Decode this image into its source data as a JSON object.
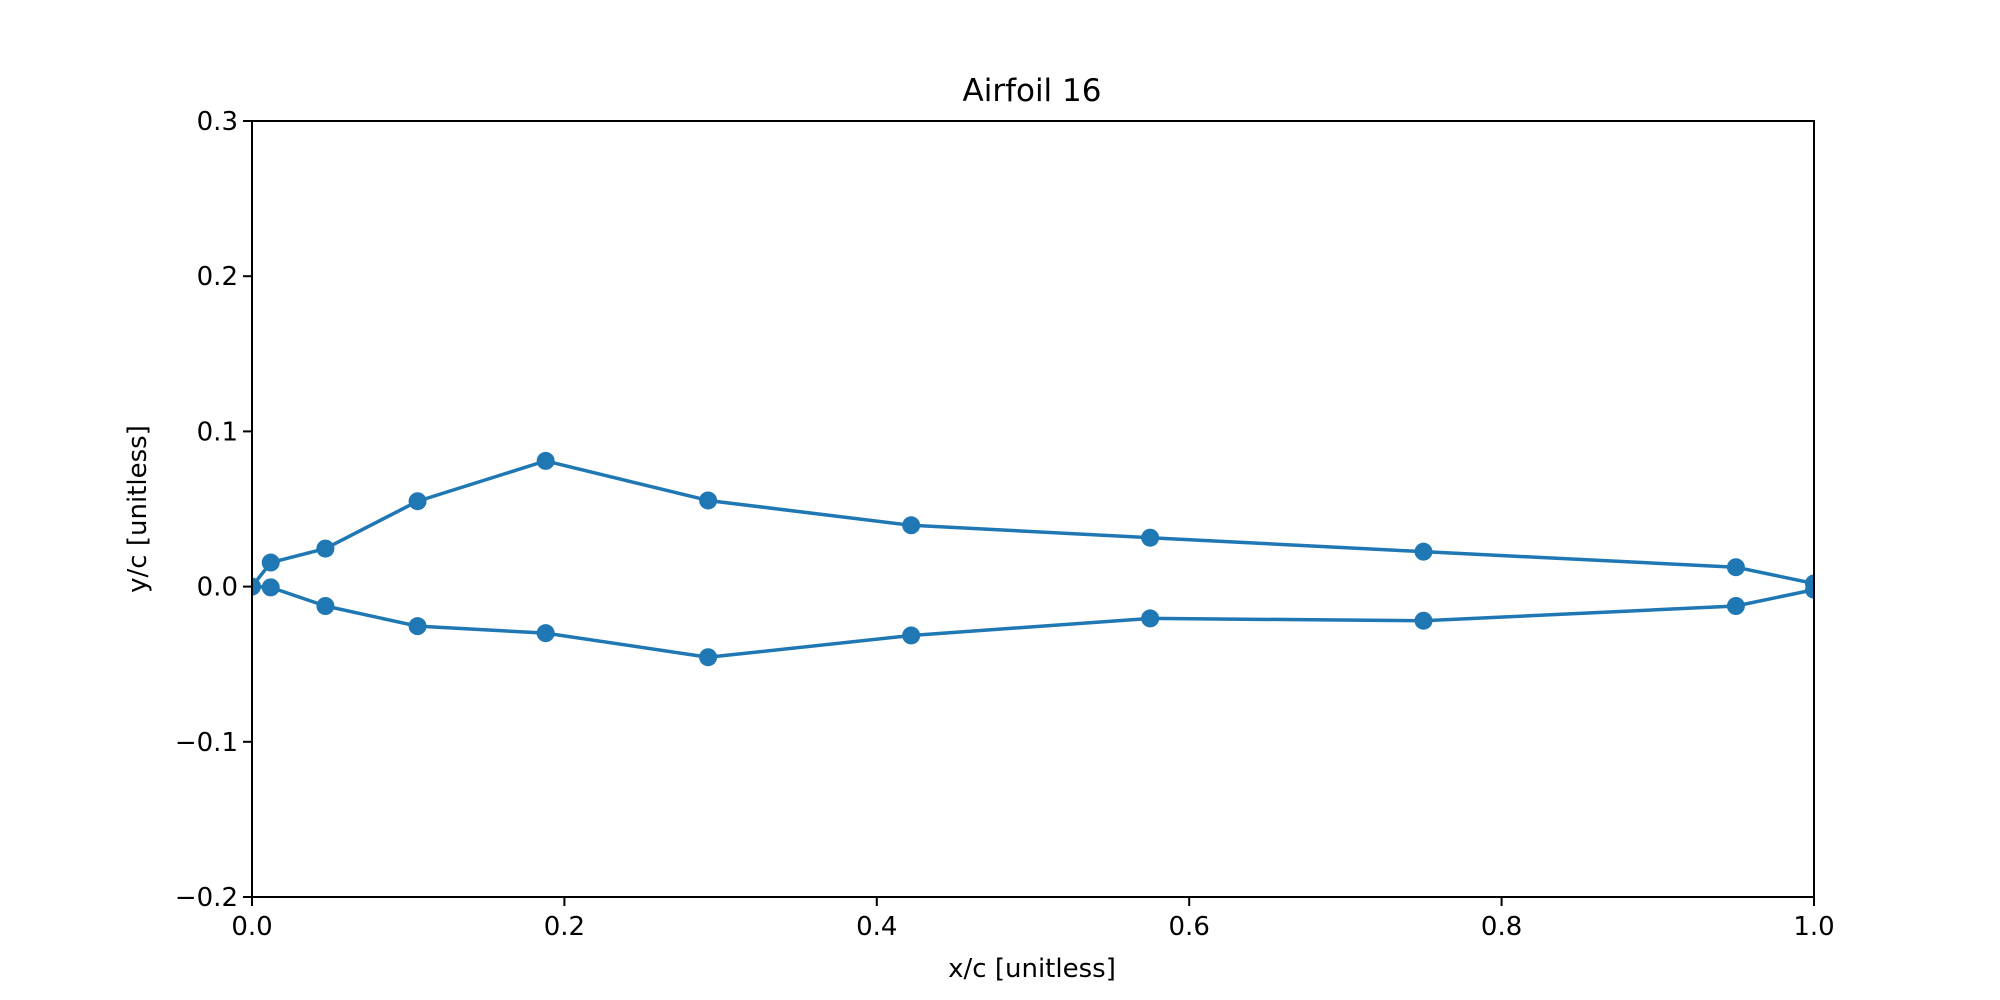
{
  "chart_data": {
    "type": "line",
    "title": "Airfoil 16",
    "xlabel": "x/c [unitless]",
    "ylabel": "y/c [unitless]",
    "xlim": [
      0.0,
      1.0
    ],
    "ylim": [
      -0.2,
      0.3
    ],
    "xticks": [
      0.0,
      0.2,
      0.4,
      0.6,
      0.8,
      1.0
    ],
    "xtick_labels": [
      "0.0",
      "0.2",
      "0.4",
      "0.6",
      "0.8",
      "1.0"
    ],
    "yticks": [
      -0.2,
      -0.1,
      0.0,
      0.1,
      0.2,
      0.3
    ],
    "ytick_labels": [
      "−0.2",
      "−0.1",
      "0.0",
      "0.1",
      "0.2",
      "0.3"
    ],
    "grid": false,
    "legend": "none",
    "series_color": "#1f77b4",
    "series": [
      {
        "x": [
          1.0,
          0.95,
          0.75,
          0.575,
          0.422,
          0.292,
          0.188,
          0.106,
          0.047,
          0.012,
          0.0,
          0.012,
          0.047,
          0.106,
          0.188,
          0.292,
          0.422,
          0.575,
          0.75,
          0.95,
          1.0
        ],
        "y": [
          0.002,
          0.0125,
          0.0225,
          0.0315,
          0.0395,
          0.0555,
          0.081,
          0.055,
          0.0245,
          0.0155,
          0.0,
          -0.0005,
          -0.0125,
          -0.0255,
          -0.03,
          -0.0455,
          -0.0315,
          -0.0205,
          -0.022,
          -0.0125,
          -0.002
        ]
      }
    ]
  }
}
